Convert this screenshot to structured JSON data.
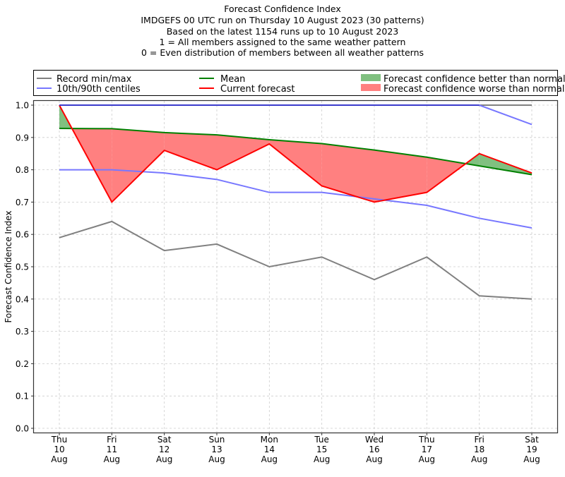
{
  "chart_data": {
    "type": "line",
    "title_lines": [
      "Forecast Confidence Index",
      "IMDGEFS 00 UTC run on Thursday 10 August 2023 (30 patterns)",
      "Based on the latest 1154 runs up to 10 August 2023",
      "1 = All members assigned to the same weather pattern",
      "0 = Even distribution of members between all weather patterns"
    ],
    "xlabel": "",
    "ylabel": "Forecast Confidence Index",
    "ylim": [
      0.0,
      1.0
    ],
    "yticks": [
      "0.0",
      "0.1",
      "0.2",
      "0.3",
      "0.4",
      "0.5",
      "0.6",
      "0.7",
      "0.8",
      "0.9",
      "1.0"
    ],
    "ytick_values": [
      0.0,
      0.1,
      0.2,
      0.3,
      0.4,
      0.5,
      0.6,
      0.7,
      0.8,
      0.9,
      1.0
    ],
    "grid": true,
    "categories": [
      [
        "Thu",
        "10",
        "Aug"
      ],
      [
        "Fri",
        "11",
        "Aug"
      ],
      [
        "Sat",
        "12",
        "Aug"
      ],
      [
        "Sun",
        "13",
        "Aug"
      ],
      [
        "Mon",
        "14",
        "Aug"
      ],
      [
        "Tue",
        "15",
        "Aug"
      ],
      [
        "Wed",
        "16",
        "Aug"
      ],
      [
        "Thu",
        "17",
        "Aug"
      ],
      [
        "Fri",
        "18",
        "Aug"
      ],
      [
        "Sat",
        "19",
        "Aug"
      ]
    ],
    "series": [
      {
        "name": "Record max",
        "role": "record-max",
        "color": "#808080",
        "values": [
          1.0,
          1.0,
          1.0,
          1.0,
          1.0,
          1.0,
          1.0,
          1.0,
          1.0,
          1.0
        ]
      },
      {
        "name": "Record min",
        "role": "record-min",
        "color": "#808080",
        "values": [
          0.59,
          0.64,
          0.55,
          0.57,
          0.5,
          0.53,
          0.46,
          0.53,
          0.41,
          0.4
        ]
      },
      {
        "name": "90th centile",
        "role": "p90",
        "color": "#7777ff",
        "values": [
          1.0,
          1.0,
          1.0,
          1.0,
          1.0,
          1.0,
          1.0,
          1.0,
          1.0,
          0.94
        ]
      },
      {
        "name": "10th centile",
        "role": "p10",
        "color": "#7777ff",
        "values": [
          0.8,
          0.8,
          0.79,
          0.77,
          0.73,
          0.73,
          0.71,
          0.69,
          0.65,
          0.62
        ]
      },
      {
        "name": "Mean",
        "role": "mean",
        "color": "#008000",
        "values": [
          0.928,
          0.927,
          0.915,
          0.908,
          0.893,
          0.881,
          0.861,
          0.839,
          0.812,
          0.785
        ]
      },
      {
        "name": "Current forecast",
        "role": "current",
        "color": "#ff0000",
        "values": [
          1.0,
          0.7,
          0.86,
          0.8,
          0.88,
          0.75,
          0.7,
          0.73,
          0.85,
          0.79
        ]
      }
    ],
    "fills": {
      "better_color": "#80c080",
      "worse_color": "#ff8080"
    },
    "legend": {
      "placement": "top, above plot",
      "entries": [
        {
          "label": "Record min/max",
          "kind": "line",
          "color": "#808080"
        },
        {
          "label": "10th/90th centiles",
          "kind": "line",
          "color": "#7777ff"
        },
        {
          "label": "Mean",
          "kind": "line",
          "color": "#008000"
        },
        {
          "label": "Current forecast",
          "kind": "line",
          "color": "#ff0000"
        },
        {
          "label": "Forecast confidence better than normal",
          "kind": "patch",
          "color": "#80c080"
        },
        {
          "label": "Forecast confidence worse than normal",
          "kind": "patch",
          "color": "#ff8080"
        }
      ]
    }
  }
}
